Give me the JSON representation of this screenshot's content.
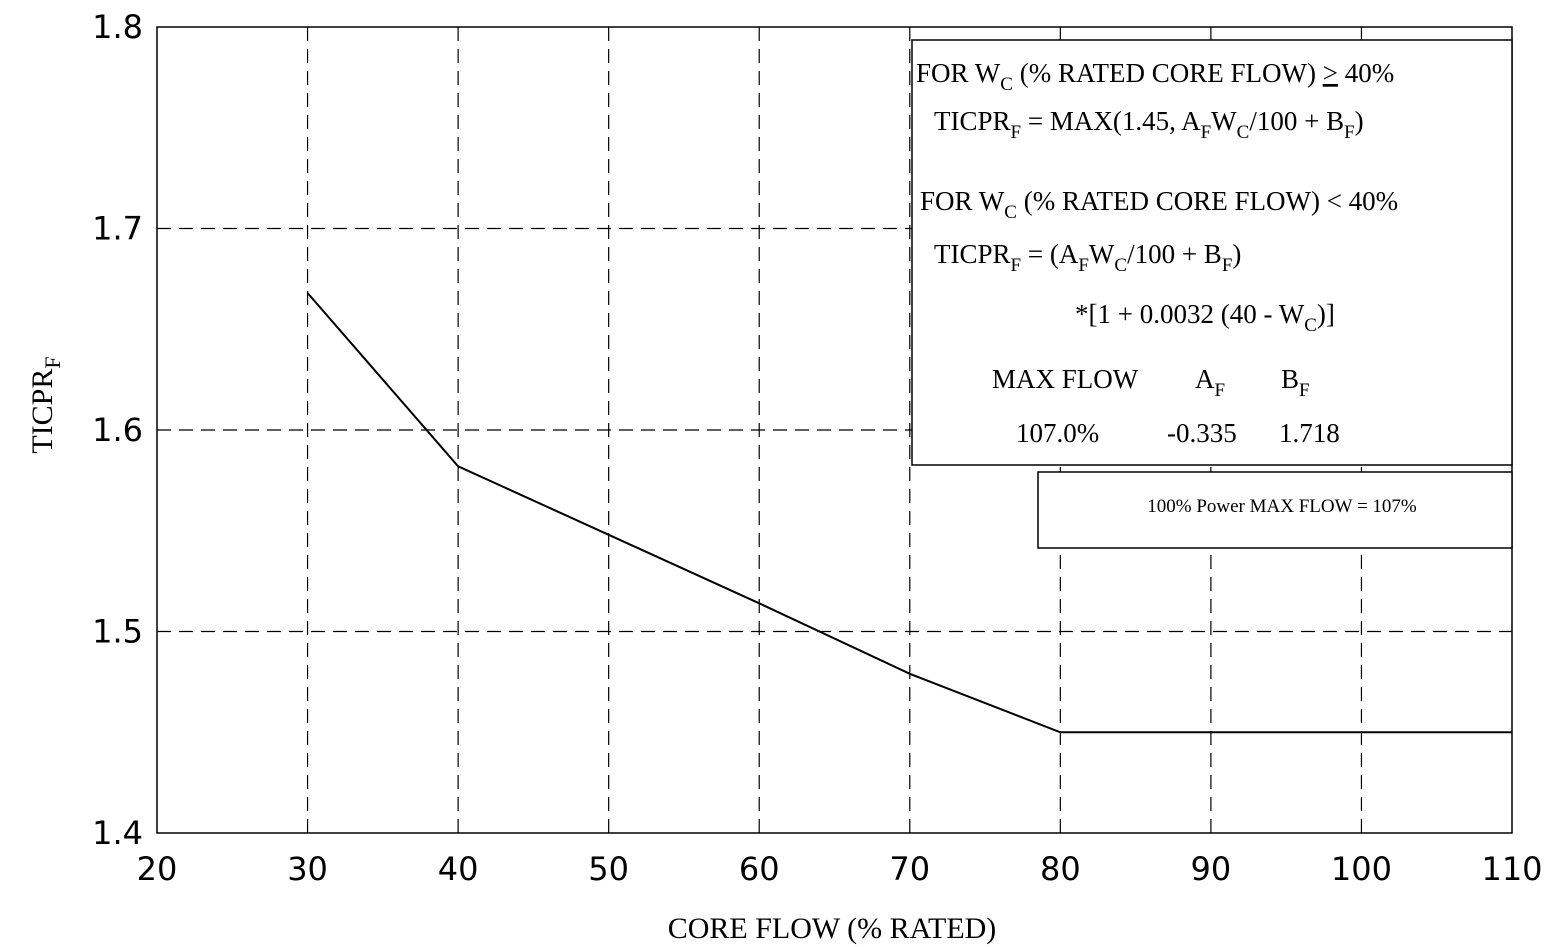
{
  "chart_data": {
    "type": "line",
    "xlabel": "CORE FLOW (% RATED)",
    "ylabel_main": "TICPR",
    "ylabel_sub": "F",
    "xlim": [
      20,
      110
    ],
    "ylim": [
      1.4,
      1.8
    ],
    "x_ticks": [
      "20",
      "30",
      "40",
      "50",
      "60",
      "70",
      "80",
      "90",
      "100",
      "110"
    ],
    "y_ticks": [
      "1.4",
      "1.5",
      "1.6",
      "1.7",
      "1.8"
    ],
    "x_tick_values": [
      20,
      30,
      40,
      50,
      60,
      70,
      80,
      90,
      100,
      110
    ],
    "y_tick_values": [
      1.4,
      1.5,
      1.6,
      1.7,
      1.8
    ],
    "grid": true,
    "series": [
      {
        "x": [
          30,
          40,
          50,
          60,
          70,
          80,
          90,
          100,
          110
        ],
        "y": [
          1.668,
          1.582,
          1.548,
          1.514,
          1.479,
          1.45,
          1.45,
          1.45,
          1.45
        ]
      }
    ]
  },
  "legend_box": {
    "line1": {
      "a": "FOR W",
      "a_sub": "C",
      "b": " (% RATED CORE FLOW) ",
      "ge": ">",
      "c": " 40%"
    },
    "line2": {
      "a": "TICPR",
      "a_sub": "F",
      "b": " = MAX(1.45, A",
      "b_sub": "F",
      "c": "W",
      "c_sub": "C",
      "d": "/100 + B",
      "d_sub": "F",
      "e": ")"
    },
    "line3": {
      "a": "FOR W",
      "a_sub": "C",
      "b": " (% RATED CORE FLOW) < 40%"
    },
    "line4": {
      "a": "TICPR",
      "a_sub": "F",
      "b": " = (A",
      "b_sub": "F",
      "c": "W",
      "c_sub": "C",
      "d": "/100 + B",
      "d_sub": "F",
      "e": ")"
    },
    "line5": {
      "a": "*[1 + 0.0032 (40 - W",
      "a_sub": "C",
      "b": ")]"
    },
    "table_headers": {
      "max_flow": "MAX FLOW",
      "a": "A",
      "a_sub": "F",
      "b": "B",
      "b_sub": "F"
    },
    "table_values": {
      "max_flow": "107.0%",
      "a": "-0.335",
      "b": "1.718"
    }
  },
  "note_box": {
    "text": "100% Power MAX FLOW = 107%"
  }
}
